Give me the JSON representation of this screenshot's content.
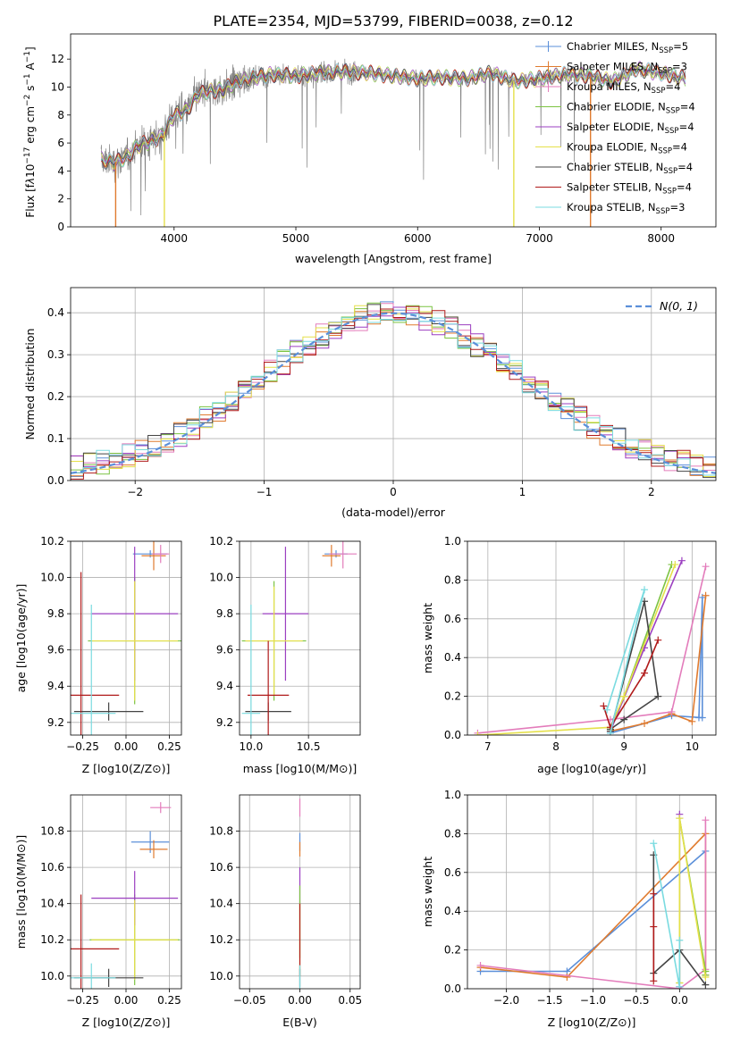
{
  "title": "PLATE=2354, MJD=53799, FIBERID=0038, z=0.12",
  "colors": {
    "Chabrier MILES": "#5b8fd9",
    "Salpeter MILES": "#e07b2f",
    "Kroupa MILES": "#e37cbb",
    "Chabrier ELODIE": "#7cc342",
    "Salpeter ELODIE": "#9b3fc0",
    "Kroupa ELODIE": "#e5e04a",
    "Chabrier STELIB": "#444444",
    "Salpeter STELIB": "#b01a1a",
    "Kroupa STELIB": "#7adbe0",
    "data": "#808080",
    "normal": "#5b8fd9"
  },
  "chart_data": [
    {
      "id": "spectrum",
      "type": "line",
      "xlabel": "wavelength [Angstrom, rest frame]",
      "ylabel": "Flux [f",
      "xlim": [
        3150,
        8450
      ],
      "ylim": [
        0,
        13.8
      ],
      "xticks": [
        4000,
        5000,
        6000,
        7000,
        8000
      ],
      "yticks": [
        0,
        2,
        4,
        6,
        8,
        10,
        12
      ],
      "grid": false,
      "legend": "upper right",
      "legend_entries": [
        "Chabrier MILES, N_SSP=5",
        "Salpeter MILES, N_SSP=3",
        "Kroupa MILES, N_SSP=4",
        "Chabrier ELODIE, N_SSP=4",
        "Salpeter ELODIE, N_SSP=4",
        "Kroupa ELODIE, N_SSP=4",
        "Chabrier STELIB, N_SSP=4",
        "Salpeter STELIB, N_SSP=4",
        "Kroupa STELIB, N_SSP=3"
      ],
      "continuum_x": [
        3400,
        3500,
        3600,
        3700,
        3800,
        3900,
        4000,
        4100,
        4200,
        4300,
        4400,
        4500,
        4600,
        4800,
        5000,
        5200,
        5400,
        5600,
        5800,
        6000,
        6200,
        6400,
        6600,
        6800,
        7000,
        7200,
        7400,
        7600,
        7800,
        8000,
        8200
      ],
      "continuum_y": [
        4.8,
        4.6,
        4.9,
        5.8,
        6.1,
        6.5,
        8.0,
        8.3,
        9.5,
        9.7,
        9.8,
        10.3,
        10.6,
        10.9,
        10.8,
        11.0,
        11.1,
        11.0,
        10.8,
        10.6,
        10.7,
        10.6,
        11.0,
        10.4,
        10.6,
        10.9,
        10.8,
        10.4,
        11.3,
        11.0,
        10.6
      ]
    },
    {
      "id": "residuals",
      "type": "step",
      "xlabel": "(data-model)/error",
      "ylabel": "Normed distribution",
      "xlim": [
        -2.5,
        2.5
      ],
      "ylim": [
        0,
        0.46
      ],
      "xticks": [
        -2,
        -1,
        0,
        1,
        2
      ],
      "yticks": [
        0.0,
        0.1,
        0.2,
        0.3,
        0.4
      ],
      "grid": true,
      "legend": "upper right",
      "normal_label": "N(0, 1)"
    },
    {
      "id": "age-vs-Z",
      "type": "errorbar",
      "xlabel": "Z [log10(Z/Z⊙)]",
      "ylabel": "age  [log10(age/yr)]",
      "xlim": [
        -0.32,
        0.32
      ],
      "ylim": [
        9.13,
        10.2
      ],
      "xticks": [
        -0.25,
        0.0,
        0.25
      ],
      "yticks": [
        9.2,
        9.4,
        9.6,
        9.8,
        10.0,
        10.2
      ],
      "points": [
        {
          "model": "Chabrier MILES",
          "x": 0.14,
          "y": 10.13,
          "xerr": 0.1,
          "yerr": 0.02
        },
        {
          "model": "Salpeter MILES",
          "x": 0.16,
          "y": 10.12,
          "xerr": 0.07,
          "yerr": 0.08
        },
        {
          "model": "Kroupa MILES",
          "x": 0.2,
          "y": 10.13,
          "xerr": 0.05,
          "yerr": 0.05
        },
        {
          "model": "Chabrier ELODIE",
          "x": 0.05,
          "y": 9.65,
          "xerr": 0.27,
          "yerr": 0.35
        },
        {
          "model": "Salpeter ELODIE",
          "x": 0.05,
          "y": 9.8,
          "xerr": 0.25,
          "yerr": 0.37
        },
        {
          "model": "Kroupa ELODIE",
          "x": 0.05,
          "y": 9.65,
          "xerr": 0.25,
          "yerr": 0.33
        },
        {
          "model": "Chabrier STELIB",
          "x": -0.1,
          "y": 9.26,
          "xerr": 0.2,
          "yerr": 0.05
        },
        {
          "model": "Salpeter STELIB",
          "x": -0.26,
          "y": 9.35,
          "xerr": 0.22,
          "yerr": 0.68
        },
        {
          "model": "Kroupa STELIB",
          "x": -0.2,
          "y": 9.25,
          "xerr": 0.14,
          "yerr": 0.6
        }
      ]
    },
    {
      "id": "age-vs-mass",
      "type": "errorbar",
      "xlabel": "mass [log10(M/M⊙)]",
      "ylabel": "",
      "xlim": [
        9.9,
        10.95
      ],
      "ylim": [
        9.13,
        10.2
      ],
      "xticks": [
        10.0,
        10.5
      ],
      "yticks": [
        9.2,
        9.4,
        9.6,
        9.8,
        10.0,
        10.2
      ],
      "points": [
        {
          "model": "Chabrier MILES",
          "x": 10.74,
          "y": 10.13,
          "xerr": 0.1,
          "yerr": 0.02
        },
        {
          "model": "Salpeter MILES",
          "x": 10.7,
          "y": 10.12,
          "xerr": 0.08,
          "yerr": 0.06
        },
        {
          "model": "Kroupa MILES",
          "x": 10.8,
          "y": 10.13,
          "xerr": 0.12,
          "yerr": 0.08
        },
        {
          "model": "Chabrier ELODIE",
          "x": 10.2,
          "y": 9.65,
          "xerr": 0.28,
          "yerr": 0.33
        },
        {
          "model": "Salpeter ELODIE",
          "x": 10.3,
          "y": 9.8,
          "xerr": 0.2,
          "yerr": 0.37
        },
        {
          "model": "Kroupa ELODIE",
          "x": 10.2,
          "y": 9.65,
          "xerr": 0.25,
          "yerr": 0.3
        },
        {
          "model": "Chabrier STELIB",
          "x": 10.15,
          "y": 9.26,
          "xerr": 0.2,
          "yerr": 0.05
        },
        {
          "model": "Salpeter STELIB",
          "x": 10.15,
          "y": 9.35,
          "xerr": 0.18,
          "yerr": 0.3
        },
        {
          "model": "Kroupa STELIB",
          "x": 10.0,
          "y": 9.25,
          "xerr": 0.08,
          "yerr": 0.6
        }
      ]
    },
    {
      "id": "mass-weight-vs-age",
      "type": "line",
      "xlabel": "age  [log10(age/yr)]",
      "ylabel": "mass weight",
      "xlim": [
        6.7,
        10.35
      ],
      "ylim": [
        0,
        1.0
      ],
      "xticks": [
        7,
        8,
        9,
        10
      ],
      "yticks": [
        0.0,
        0.2,
        0.4,
        0.6,
        0.8,
        1.0
      ],
      "series": [
        {
          "model": "Chabrier MILES",
          "x": [
            8.8,
            9.7,
            10.15,
            10.15,
            10.1
          ],
          "y": [
            0.01,
            0.1,
            0.09,
            0.71,
            0.09
          ]
        },
        {
          "model": "Salpeter MILES",
          "x": [
            8.8,
            9.3,
            9.7,
            10.0,
            10.2
          ],
          "y": [
            0.02,
            0.06,
            0.11,
            0.07,
            0.72
          ]
        },
        {
          "model": "Kroupa MILES",
          "x": [
            6.85,
            8.8,
            9.7,
            10.2
          ],
          "y": [
            0.01,
            0.08,
            0.12,
            0.87
          ]
        },
        {
          "model": "Chabrier ELODIE",
          "x": [
            8.8,
            9.0,
            9.7
          ],
          "y": [
            0.03,
            0.2,
            0.88
          ]
        },
        {
          "model": "Salpeter ELODIE",
          "x": [
            8.8,
            9.3,
            9.85
          ],
          "y": [
            0.02,
            0.45,
            0.9
          ]
        },
        {
          "model": "Kroupa ELODIE",
          "x": [
            6.85,
            8.8,
            9.0,
            9.75
          ],
          "y": [
            0.0,
            0.04,
            0.2,
            0.88
          ]
        },
        {
          "model": "Chabrier STELIB",
          "x": [
            8.8,
            9.3,
            9.5,
            9.0,
            8.8
          ],
          "y": [
            0.02,
            0.69,
            0.2,
            0.08,
            0.03
          ]
        },
        {
          "model": "Salpeter STELIB",
          "x": [
            8.7,
            8.8,
            9.3,
            9.5
          ],
          "y": [
            0.15,
            0.04,
            0.32,
            0.49
          ]
        },
        {
          "model": "Kroupa STELIB",
          "x": [
            8.8,
            9.3,
            8.75
          ],
          "y": [
            0.01,
            0.75,
            0.13
          ]
        }
      ]
    },
    {
      "id": "mass-vs-Z",
      "type": "errorbar",
      "xlabel": "Z [log10(Z/Z⊙)]",
      "ylabel": "mass [log10(M/M⊙)]",
      "xlim": [
        -0.32,
        0.32
      ],
      "ylim": [
        9.93,
        11.0
      ],
      "xticks": [
        -0.25,
        0.0,
        0.25
      ],
      "yticks": [
        10.0,
        10.2,
        10.4,
        10.6,
        10.8
      ],
      "points": [
        {
          "model": "Chabrier MILES",
          "x": 0.14,
          "y": 10.74,
          "xerr": 0.11,
          "yerr": 0.06
        },
        {
          "model": "Salpeter MILES",
          "x": 0.16,
          "y": 10.7,
          "xerr": 0.08,
          "yerr": 0.05
        },
        {
          "model": "Kroupa MILES",
          "x": 0.2,
          "y": 10.93,
          "xerr": 0.06,
          "yerr": 0.03
        },
        {
          "model": "Chabrier ELODIE",
          "x": 0.05,
          "y": 10.2,
          "xerr": 0.26,
          "yerr": 0.25
        },
        {
          "model": "Salpeter ELODIE",
          "x": 0.05,
          "y": 10.43,
          "xerr": 0.25,
          "yerr": 0.15
        },
        {
          "model": "Kroupa ELODIE",
          "x": 0.05,
          "y": 10.2,
          "xerr": 0.25,
          "yerr": 0.22
        },
        {
          "model": "Chabrier STELIB",
          "x": -0.1,
          "y": 9.99,
          "xerr": 0.2,
          "yerr": 0.05
        },
        {
          "model": "Salpeter STELIB",
          "x": -0.26,
          "y": 10.15,
          "xerr": 0.22,
          "yerr": 0.3
        },
        {
          "model": "Kroupa STELIB",
          "x": -0.2,
          "y": 9.99,
          "xerr": 0.14,
          "yerr": 0.08
        }
      ]
    },
    {
      "id": "mass-vs-EBV",
      "type": "errorbar",
      "xlabel": "E(B-V)",
      "ylabel": "",
      "xlim": [
        -0.06,
        0.06
      ],
      "ylim": [
        9.93,
        11.0
      ],
      "xticks": [
        -0.05,
        0.0,
        0.05
      ],
      "yticks": [
        10.0,
        10.2,
        10.4,
        10.6,
        10.8
      ],
      "points": [
        {
          "model": "Kroupa MILES",
          "x": 0.0,
          "y": 10.93,
          "xerr": 0.0,
          "yerr": 0.05
        },
        {
          "model": "Chabrier MILES",
          "x": 0.0,
          "y": 10.74,
          "xerr": 0.0,
          "yerr": 0.05
        },
        {
          "model": "Salpeter MILES",
          "x": 0.0,
          "y": 10.7,
          "xerr": 0.0,
          "yerr": 0.04
        },
        {
          "model": "Salpeter ELODIE",
          "x": 0.0,
          "y": 10.5,
          "xerr": 0.0,
          "yerr": 0.1
        },
        {
          "model": "Chabrier ELODIE",
          "x": 0.0,
          "y": 10.3,
          "xerr": 0.0,
          "yerr": 0.2
        },
        {
          "model": "Kroupa ELODIE",
          "x": 0.0,
          "y": 10.2,
          "xerr": 0.0,
          "yerr": 0.2
        },
        {
          "model": "Salpeter STELIB",
          "x": 0.0,
          "y": 10.2,
          "xerr": 0.0,
          "yerr": 0.2
        },
        {
          "model": "Chabrier STELIB",
          "x": 0.0,
          "y": 9.99,
          "xerr": 0.0,
          "yerr": 0.05
        },
        {
          "model": "Kroupa STELIB",
          "x": 0.0,
          "y": 9.99,
          "xerr": 0.0,
          "yerr": 0.07
        }
      ]
    },
    {
      "id": "mass-weight-vs-Z",
      "type": "line",
      "xlabel": "Z [log10(Z/Z⊙)]",
      "ylabel": "mass weight",
      "xlim": [
        -2.45,
        0.42
      ],
      "ylim": [
        0,
        1.0
      ],
      "xticks": [
        -2.0,
        -1.5,
        -1.0,
        -0.5,
        0.0
      ],
      "yticks": [
        0.0,
        0.2,
        0.4,
        0.6,
        0.8,
        1.0
      ],
      "series": [
        {
          "model": "Chabrier MILES",
          "x": [
            -2.3,
            -1.3,
            0.3
          ],
          "y": [
            0.09,
            0.09,
            0.71
          ]
        },
        {
          "model": "Salpeter MILES",
          "x": [
            -2.3,
            -1.3,
            0.3,
            0.3
          ],
          "y": [
            0.11,
            0.06,
            0.8,
            0.07
          ]
        },
        {
          "model": "Kroupa MILES",
          "x": [
            -2.3,
            0.0,
            0.3,
            0.3
          ],
          "y": [
            0.12,
            0.0,
            0.1,
            0.87
          ]
        },
        {
          "model": "Chabrier ELODIE",
          "x": [
            0.0,
            0.0,
            0.3,
            0.3
          ],
          "y": [
            0.03,
            0.88,
            0.09,
            0.07
          ]
        },
        {
          "model": "Salpeter ELODIE",
          "x": [
            0.0,
            0.0
          ],
          "y": [
            0.01,
            0.9
          ]
        },
        {
          "model": "Kroupa ELODIE",
          "x": [
            0.0,
            0.0,
            0.3
          ],
          "y": [
            0.03,
            0.88,
            0.06
          ]
        },
        {
          "model": "Chabrier STELIB",
          "x": [
            -0.3,
            -0.3,
            0.0,
            0.3
          ],
          "y": [
            0.69,
            0.08,
            0.2,
            0.02
          ]
        },
        {
          "model": "Salpeter STELIB",
          "x": [
            -0.3,
            -0.3,
            -0.3
          ],
          "y": [
            0.04,
            0.49,
            0.32
          ]
        },
        {
          "model": "Kroupa STELIB",
          "x": [
            -0.3,
            0.0,
            0.0
          ],
          "y": [
            0.75,
            0.01,
            0.25
          ]
        }
      ]
    }
  ]
}
